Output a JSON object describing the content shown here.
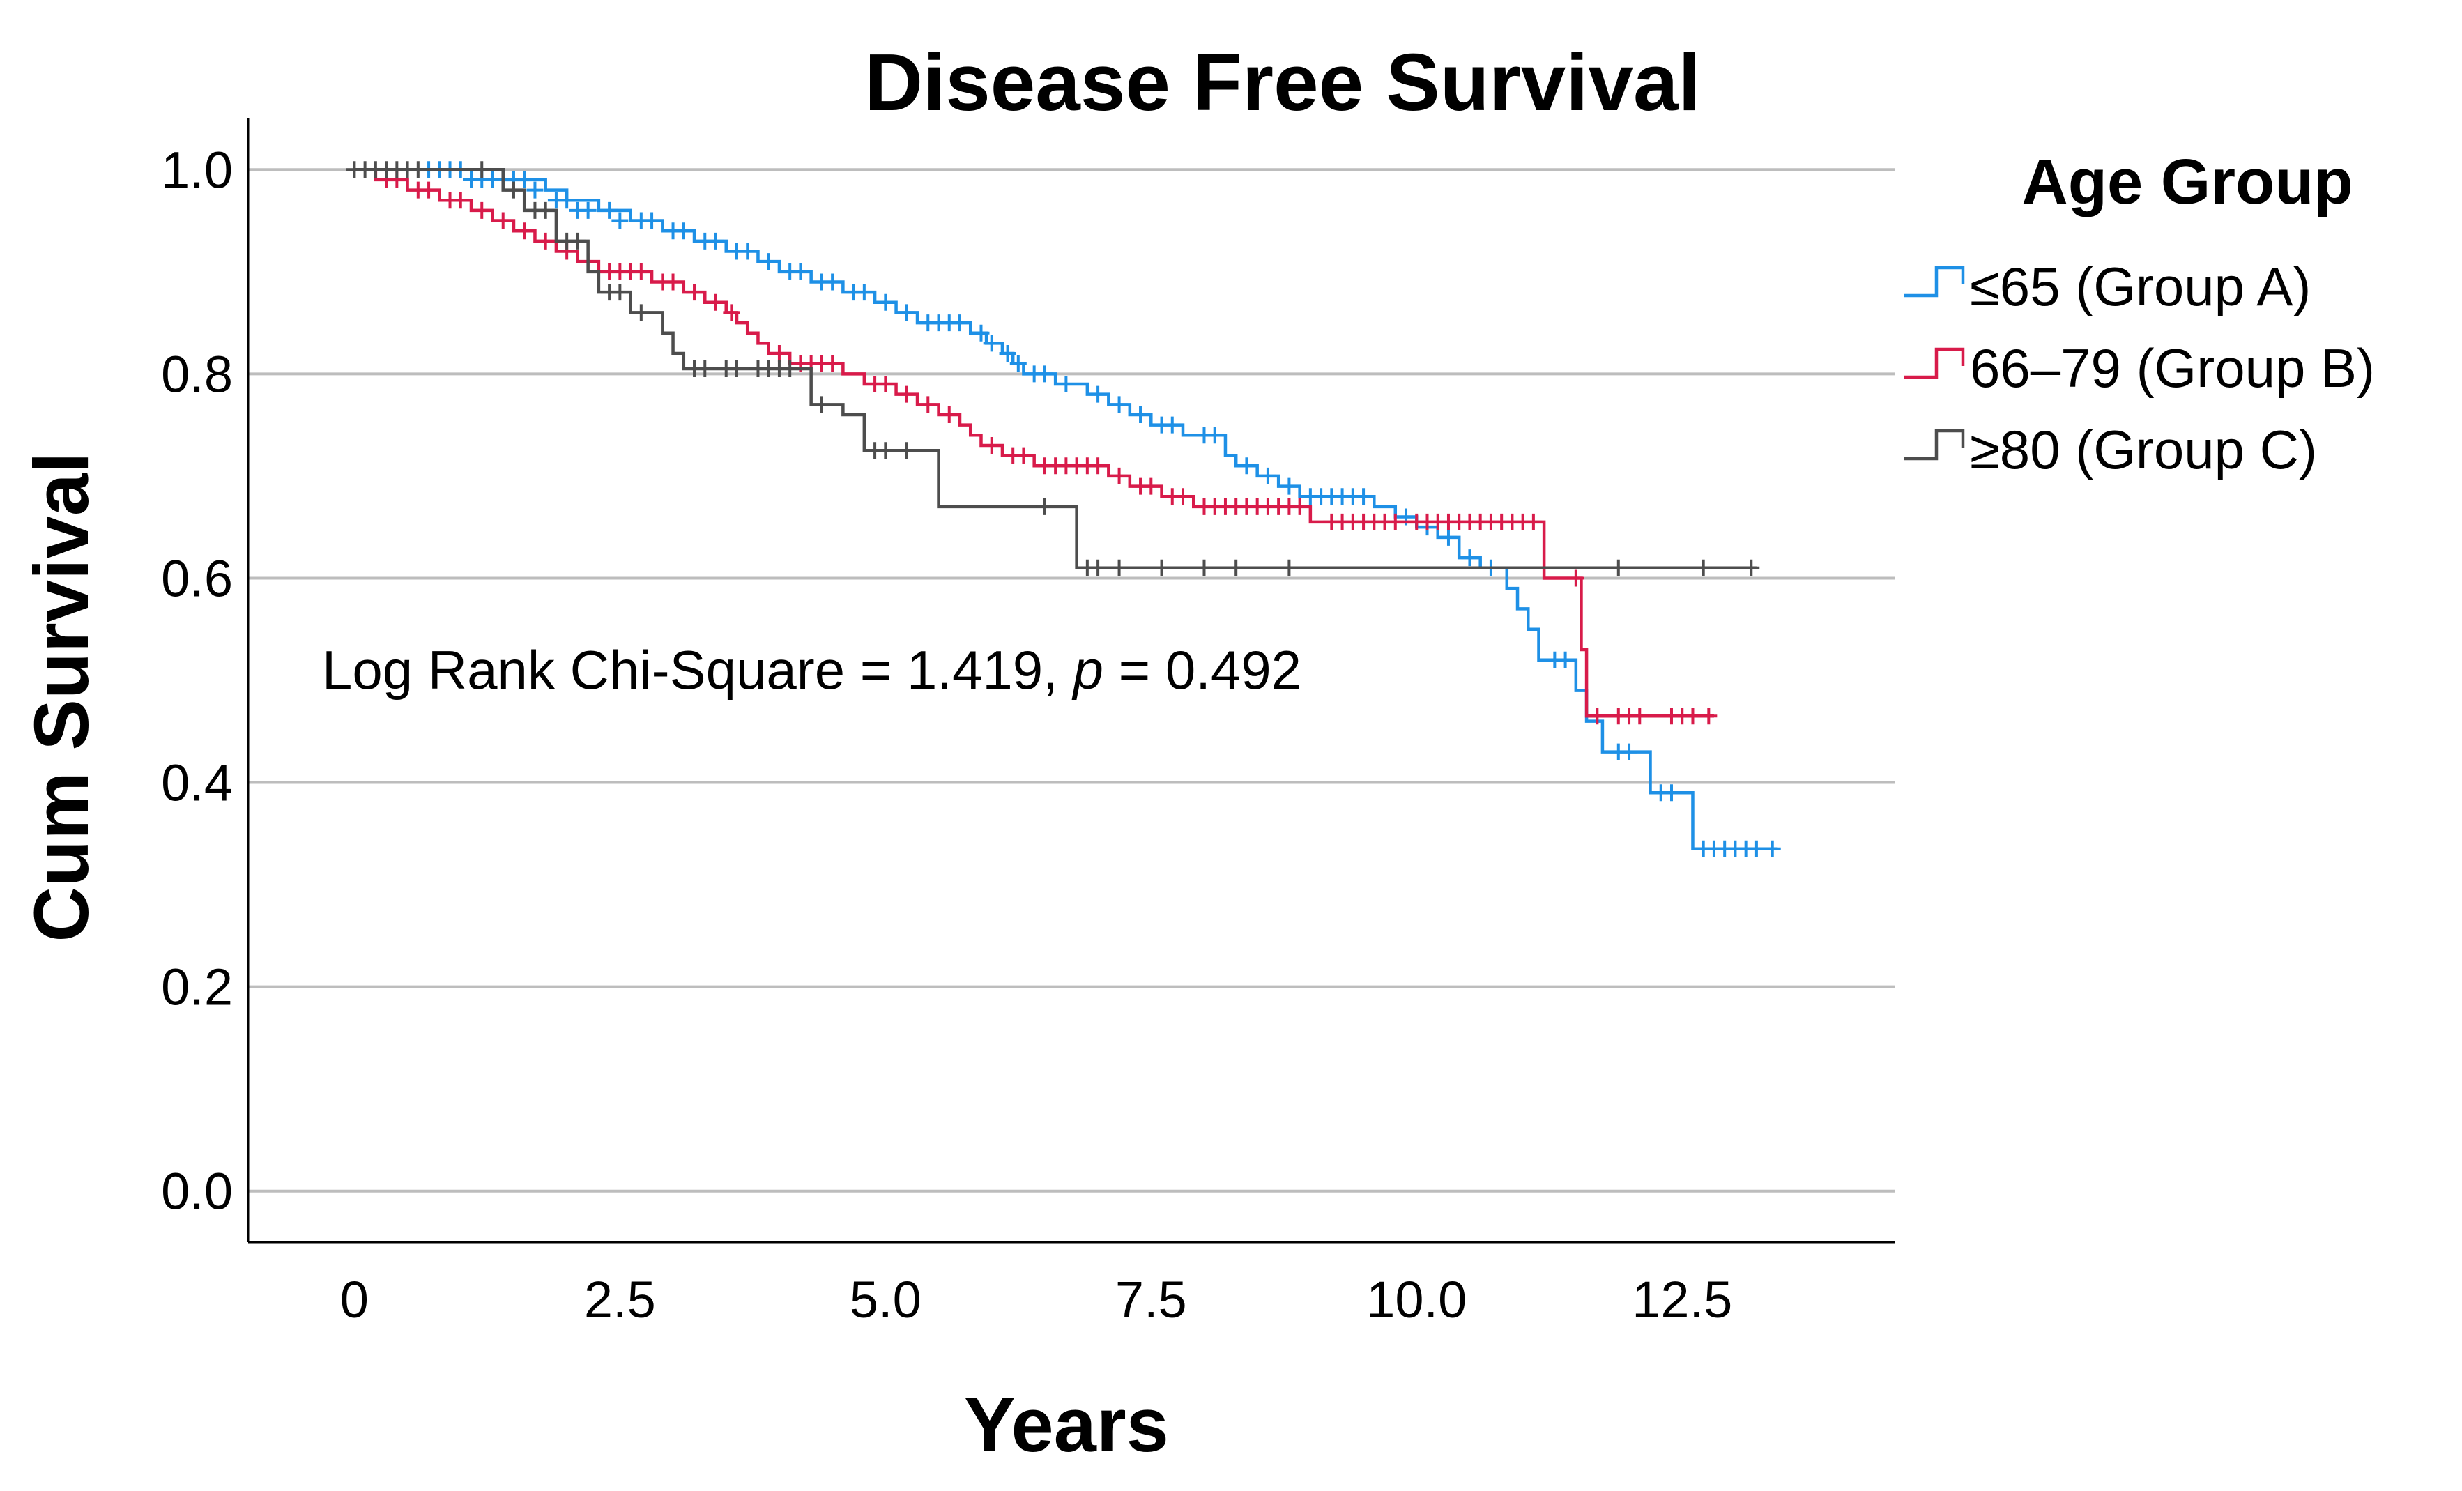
{
  "chart_data": {
    "type": "line",
    "subtype": "kaplan-meier",
    "title": "Disease Free Survival",
    "xlabel": "Years",
    "ylabel": "Cum Survival",
    "xlim": [
      -1.0,
      14.5
    ],
    "ylim": [
      -0.05,
      1.05
    ],
    "xticks": [
      0,
      2.5,
      5.0,
      7.5,
      10.0,
      12.5
    ],
    "xtick_labels": [
      "0",
      "2.5",
      "5.0",
      "7.5",
      "10.0",
      "12.5"
    ],
    "yticks": [
      0.0,
      0.2,
      0.4,
      0.6,
      0.8,
      1.0
    ],
    "ytick_labels": [
      "0.0",
      "0.2",
      "0.4",
      "0.6",
      "0.8",
      "1.0"
    ],
    "grid": "horizontal",
    "annotation": {
      "prefix": "Log Rank Chi-Square = 1.419, ",
      "p_symbol": "p",
      "suffix": " = 0.492"
    },
    "legend": {
      "title": "Age Group",
      "position": "right"
    },
    "series": [
      {
        "name": "≤65 (Group A)",
        "color": "#1e90e6",
        "steps": [
          [
            0,
            1.0
          ],
          [
            0.9,
            1.0
          ],
          [
            1.4,
            0.99
          ],
          [
            1.8,
            0.98
          ],
          [
            2.0,
            0.97
          ],
          [
            2.3,
            0.96
          ],
          [
            2.6,
            0.95
          ],
          [
            2.9,
            0.94
          ],
          [
            3.2,
            0.93
          ],
          [
            3.5,
            0.92
          ],
          [
            3.8,
            0.91
          ],
          [
            4.0,
            0.9
          ],
          [
            4.3,
            0.89
          ],
          [
            4.6,
            0.88
          ],
          [
            4.9,
            0.87
          ],
          [
            5.1,
            0.86
          ],
          [
            5.3,
            0.85
          ],
          [
            5.8,
            0.84
          ],
          [
            5.95,
            0.83
          ],
          [
            6.1,
            0.82
          ],
          [
            6.2,
            0.81
          ],
          [
            6.3,
            0.8
          ],
          [
            6.6,
            0.79
          ],
          [
            6.9,
            0.78
          ],
          [
            7.1,
            0.77
          ],
          [
            7.3,
            0.76
          ],
          [
            7.5,
            0.75
          ],
          [
            7.8,
            0.74
          ],
          [
            8.2,
            0.72
          ],
          [
            8.3,
            0.71
          ],
          [
            8.5,
            0.7
          ],
          [
            8.7,
            0.69
          ],
          [
            8.9,
            0.68
          ],
          [
            9.6,
            0.67
          ],
          [
            9.8,
            0.66
          ],
          [
            10.0,
            0.65
          ],
          [
            10.2,
            0.64
          ],
          [
            10.4,
            0.62
          ],
          [
            10.6,
            0.61
          ],
          [
            10.85,
            0.59
          ],
          [
            10.95,
            0.57
          ],
          [
            11.05,
            0.55
          ],
          [
            11.15,
            0.52
          ],
          [
            11.5,
            0.49
          ],
          [
            11.6,
            0.46
          ],
          [
            11.75,
            0.43
          ],
          [
            12.2,
            0.39
          ],
          [
            12.6,
            0.335
          ]
        ],
        "end_x": 13.4,
        "censored": [
          [
            0.7,
            1.0
          ],
          [
            0.8,
            1.0
          ],
          [
            0.9,
            1.0
          ],
          [
            1.0,
            1.0
          ],
          [
            1.1,
            0.99
          ],
          [
            1.2,
            0.99
          ],
          [
            1.3,
            0.99
          ],
          [
            1.4,
            0.99
          ],
          [
            1.5,
            0.99
          ],
          [
            1.6,
            0.99
          ],
          [
            1.7,
            0.98
          ],
          [
            1.9,
            0.97
          ],
          [
            2.0,
            0.97
          ],
          [
            2.1,
            0.96
          ],
          [
            2.2,
            0.96
          ],
          [
            2.4,
            0.96
          ],
          [
            2.5,
            0.95
          ],
          [
            2.7,
            0.95
          ],
          [
            2.8,
            0.95
          ],
          [
            3.0,
            0.94
          ],
          [
            3.1,
            0.94
          ],
          [
            3.3,
            0.93
          ],
          [
            3.4,
            0.93
          ],
          [
            3.6,
            0.92
          ],
          [
            3.7,
            0.92
          ],
          [
            3.9,
            0.91
          ],
          [
            4.1,
            0.9
          ],
          [
            4.2,
            0.9
          ],
          [
            4.4,
            0.89
          ],
          [
            4.5,
            0.89
          ],
          [
            4.7,
            0.88
          ],
          [
            4.8,
            0.88
          ],
          [
            5.0,
            0.87
          ],
          [
            5.2,
            0.86
          ],
          [
            5.4,
            0.85
          ],
          [
            5.5,
            0.85
          ],
          [
            5.6,
            0.85
          ],
          [
            5.7,
            0.85
          ],
          [
            5.9,
            0.84
          ],
          [
            6.0,
            0.83
          ],
          [
            6.15,
            0.82
          ],
          [
            6.25,
            0.81
          ],
          [
            6.4,
            0.8
          ],
          [
            6.5,
            0.8
          ],
          [
            6.7,
            0.79
          ],
          [
            7.0,
            0.78
          ],
          [
            7.2,
            0.77
          ],
          [
            7.4,
            0.76
          ],
          [
            7.6,
            0.75
          ],
          [
            7.7,
            0.75
          ],
          [
            8.0,
            0.74
          ],
          [
            8.1,
            0.74
          ],
          [
            8.4,
            0.71
          ],
          [
            8.6,
            0.7
          ],
          [
            8.8,
            0.69
          ],
          [
            9.0,
            0.68
          ],
          [
            9.1,
            0.68
          ],
          [
            9.2,
            0.68
          ],
          [
            9.3,
            0.68
          ],
          [
            9.4,
            0.68
          ],
          [
            9.5,
            0.68
          ],
          [
            9.9,
            0.66
          ],
          [
            10.1,
            0.65
          ],
          [
            10.3,
            0.64
          ],
          [
            10.5,
            0.62
          ],
          [
            10.7,
            0.61
          ],
          [
            11.3,
            0.52
          ],
          [
            11.4,
            0.52
          ],
          [
            11.9,
            0.43
          ],
          [
            12.0,
            0.43
          ],
          [
            12.3,
            0.39
          ],
          [
            12.4,
            0.39
          ],
          [
            12.7,
            0.335
          ],
          [
            12.8,
            0.335
          ],
          [
            12.9,
            0.335
          ],
          [
            13.0,
            0.335
          ],
          [
            13.1,
            0.335
          ],
          [
            13.2,
            0.335
          ],
          [
            13.35,
            0.335
          ]
        ]
      },
      {
        "name": "66–79 (Group B)",
        "color": "#d81b4a",
        "steps": [
          [
            0,
            1.0
          ],
          [
            0.2,
            0.99
          ],
          [
            0.5,
            0.98
          ],
          [
            0.8,
            0.97
          ],
          [
            1.1,
            0.96
          ],
          [
            1.3,
            0.95
          ],
          [
            1.5,
            0.94
          ],
          [
            1.7,
            0.93
          ],
          [
            1.9,
            0.92
          ],
          [
            2.1,
            0.91
          ],
          [
            2.3,
            0.9
          ],
          [
            2.8,
            0.89
          ],
          [
            3.1,
            0.88
          ],
          [
            3.3,
            0.87
          ],
          [
            3.5,
            0.86
          ],
          [
            3.6,
            0.85
          ],
          [
            3.7,
            0.84
          ],
          [
            3.8,
            0.83
          ],
          [
            3.9,
            0.82
          ],
          [
            4.1,
            0.81
          ],
          [
            4.6,
            0.8
          ],
          [
            4.8,
            0.79
          ],
          [
            5.1,
            0.78
          ],
          [
            5.3,
            0.77
          ],
          [
            5.5,
            0.76
          ],
          [
            5.7,
            0.75
          ],
          [
            5.8,
            0.74
          ],
          [
            5.9,
            0.73
          ],
          [
            6.1,
            0.72
          ],
          [
            6.4,
            0.71
          ],
          [
            7.1,
            0.7
          ],
          [
            7.3,
            0.69
          ],
          [
            7.6,
            0.68
          ],
          [
            7.9,
            0.67
          ],
          [
            9.0,
            0.655
          ],
          [
            11.2,
            0.6
          ],
          [
            11.55,
            0.53
          ],
          [
            11.6,
            0.465
          ]
        ],
        "end_x": 12.8,
        "censored": [
          [
            0.3,
            0.99
          ],
          [
            0.4,
            0.99
          ],
          [
            0.6,
            0.98
          ],
          [
            0.7,
            0.98
          ],
          [
            0.9,
            0.97
          ],
          [
            1.0,
            0.97
          ],
          [
            1.2,
            0.96
          ],
          [
            1.4,
            0.95
          ],
          [
            1.6,
            0.94
          ],
          [
            1.8,
            0.93
          ],
          [
            2.0,
            0.92
          ],
          [
            2.2,
            0.91
          ],
          [
            2.4,
            0.9
          ],
          [
            2.5,
            0.9
          ],
          [
            2.6,
            0.9
          ],
          [
            2.7,
            0.9
          ],
          [
            2.9,
            0.89
          ],
          [
            3.0,
            0.89
          ],
          [
            3.2,
            0.88
          ],
          [
            3.4,
            0.87
          ],
          [
            3.55,
            0.86
          ],
          [
            4.0,
            0.82
          ],
          [
            4.2,
            0.81
          ],
          [
            4.3,
            0.81
          ],
          [
            4.4,
            0.81
          ],
          [
            4.5,
            0.81
          ],
          [
            4.9,
            0.79
          ],
          [
            5.0,
            0.79
          ],
          [
            5.2,
            0.78
          ],
          [
            5.4,
            0.77
          ],
          [
            5.6,
            0.76
          ],
          [
            6.0,
            0.73
          ],
          [
            6.2,
            0.72
          ],
          [
            6.3,
            0.72
          ],
          [
            6.5,
            0.71
          ],
          [
            6.6,
            0.71
          ],
          [
            6.7,
            0.71
          ],
          [
            6.8,
            0.71
          ],
          [
            6.9,
            0.71
          ],
          [
            7.0,
            0.71
          ],
          [
            7.2,
            0.7
          ],
          [
            7.4,
            0.69
          ],
          [
            7.5,
            0.69
          ],
          [
            7.7,
            0.68
          ],
          [
            7.8,
            0.68
          ],
          [
            8.0,
            0.67
          ],
          [
            8.1,
            0.67
          ],
          [
            8.2,
            0.67
          ],
          [
            8.3,
            0.67
          ],
          [
            8.4,
            0.67
          ],
          [
            8.5,
            0.67
          ],
          [
            8.6,
            0.67
          ],
          [
            8.7,
            0.67
          ],
          [
            8.8,
            0.67
          ],
          [
            8.9,
            0.67
          ],
          [
            9.2,
            0.655
          ],
          [
            9.3,
            0.655
          ],
          [
            9.4,
            0.655
          ],
          [
            9.5,
            0.655
          ],
          [
            9.6,
            0.655
          ],
          [
            9.7,
            0.655
          ],
          [
            9.8,
            0.655
          ],
          [
            10.0,
            0.655
          ],
          [
            10.1,
            0.655
          ],
          [
            10.2,
            0.655
          ],
          [
            10.3,
            0.655
          ],
          [
            10.4,
            0.655
          ],
          [
            10.5,
            0.655
          ],
          [
            10.6,
            0.655
          ],
          [
            10.7,
            0.655
          ],
          [
            10.8,
            0.655
          ],
          [
            10.9,
            0.655
          ],
          [
            11.0,
            0.655
          ],
          [
            11.1,
            0.655
          ],
          [
            11.5,
            0.6
          ],
          [
            11.7,
            0.465
          ],
          [
            11.9,
            0.465
          ],
          [
            12.0,
            0.465
          ],
          [
            12.1,
            0.465
          ],
          [
            12.4,
            0.465
          ],
          [
            12.5,
            0.465
          ],
          [
            12.6,
            0.465
          ],
          [
            12.75,
            0.465
          ]
        ]
      },
      {
        "name": "≥80 (Group C)",
        "color": "#4d4d4d",
        "steps": [
          [
            0,
            1.0
          ],
          [
            1.4,
            0.98
          ],
          [
            1.6,
            0.96
          ],
          [
            1.9,
            0.93
          ],
          [
            2.2,
            0.9
          ],
          [
            2.3,
            0.88
          ],
          [
            2.6,
            0.86
          ],
          [
            2.9,
            0.84
          ],
          [
            3.0,
            0.82
          ],
          [
            3.1,
            0.805
          ],
          [
            4.3,
            0.77
          ],
          [
            4.6,
            0.76
          ],
          [
            4.8,
            0.725
          ],
          [
            5.5,
            0.67
          ],
          [
            6.8,
            0.61
          ]
        ],
        "end_x": 13.2,
        "censored": [
          [
            0.0,
            1.0
          ],
          [
            0.1,
            1.0
          ],
          [
            0.2,
            1.0
          ],
          [
            0.3,
            1.0
          ],
          [
            0.4,
            1.0
          ],
          [
            0.5,
            1.0
          ],
          [
            0.6,
            1.0
          ],
          [
            1.2,
            1.0
          ],
          [
            1.5,
            0.98
          ],
          [
            1.7,
            0.96
          ],
          [
            1.8,
            0.96
          ],
          [
            2.0,
            0.93
          ],
          [
            2.1,
            0.93
          ],
          [
            2.4,
            0.88
          ],
          [
            2.5,
            0.88
          ],
          [
            2.7,
            0.86
          ],
          [
            3.2,
            0.805
          ],
          [
            3.3,
            0.805
          ],
          [
            3.5,
            0.805
          ],
          [
            3.6,
            0.805
          ],
          [
            3.8,
            0.805
          ],
          [
            3.9,
            0.805
          ],
          [
            4.0,
            0.805
          ],
          [
            4.1,
            0.805
          ],
          [
            4.4,
            0.77
          ],
          [
            4.9,
            0.725
          ],
          [
            5.0,
            0.725
          ],
          [
            5.2,
            0.725
          ],
          [
            6.5,
            0.67
          ],
          [
            6.9,
            0.61
          ],
          [
            7.0,
            0.61
          ],
          [
            7.2,
            0.61
          ],
          [
            7.6,
            0.61
          ],
          [
            8.0,
            0.61
          ],
          [
            8.3,
            0.61
          ],
          [
            8.8,
            0.61
          ],
          [
            11.9,
            0.61
          ],
          [
            12.7,
            0.61
          ],
          [
            13.15,
            0.61
          ]
        ]
      }
    ]
  }
}
